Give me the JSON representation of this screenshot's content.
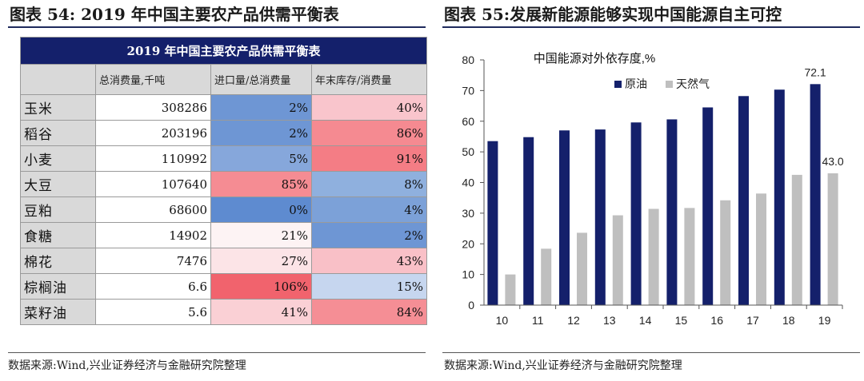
{
  "left": {
    "figure_title": "图表 54:   2019 年中国主要农产品供需平衡表",
    "source": "数据来源:Wind,兴业证券经济与金融研究院整理"
  },
  "right": {
    "figure_title": "图表 55:发展新能源能够实现中国能源自主可控",
    "source": "数据来源:Wind,兴业证券经济与金融研究院整理"
  },
  "chart_data": [
    {
      "type": "table",
      "title": "2019 年中国主要农产品供需平衡表",
      "columns": [
        "",
        "总消费量,千吨",
        "进口量/总消费量",
        "年末库存/消费量"
      ],
      "rows": [
        {
          "name": "玉米",
          "consumption": "308286",
          "import_ratio": "2%",
          "stock_ratio": "40%",
          "import_color": "#6e96d4",
          "stock_color": "#f9c5cc"
        },
        {
          "name": "稻谷",
          "consumption": "203196",
          "import_ratio": "2%",
          "stock_ratio": "86%",
          "import_color": "#6e96d4",
          "stock_color": "#f58a91"
        },
        {
          "name": "小麦",
          "consumption": "110992",
          "import_ratio": "5%",
          "stock_ratio": "91%",
          "import_color": "#86a7db",
          "stock_color": "#f47d85"
        },
        {
          "name": "大豆",
          "consumption": "107640",
          "import_ratio": "85%",
          "stock_ratio": "8%",
          "import_color": "#f58c93",
          "stock_color": "#8fb0de"
        },
        {
          "name": "豆粕",
          "consumption": "68600",
          "import_ratio": "0%",
          "stock_ratio": "4%",
          "import_color": "#5e8bd0",
          "stock_color": "#7ca1d8"
        },
        {
          "name": "食糖",
          "consumption": "14902",
          "import_ratio": "21%",
          "stock_ratio": "2%",
          "import_color": "#fdf3f4",
          "stock_color": "#6e96d4"
        },
        {
          "name": "棉花",
          "consumption": "7476",
          "import_ratio": "27%",
          "stock_ratio": "43%",
          "import_color": "#fce4e7",
          "stock_color": "#f9c0c7"
        },
        {
          "name": "棕榈油",
          "consumption": "6.6",
          "import_ratio": "106%",
          "stock_ratio": "15%",
          "import_color": "#f1636d",
          "stock_color": "#c6d6ef"
        },
        {
          "name": "菜籽油",
          "consumption": "5.6",
          "import_ratio": "41%",
          "stock_ratio": "84%",
          "import_color": "#fad0d5",
          "stock_color": "#f58e95"
        }
      ]
    },
    {
      "type": "bar",
      "title": "中国能源对外依存度,%",
      "categories": [
        "10",
        "11",
        "12",
        "13",
        "14",
        "15",
        "16",
        "17",
        "18",
        "19"
      ],
      "series": [
        {
          "name": "原油",
          "color": "#14206b",
          "values": [
            53.5,
            54.8,
            57.0,
            57.3,
            59.6,
            60.6,
            64.5,
            68.2,
            70.3,
            72.1
          ]
        },
        {
          "name": "天然气",
          "color": "#bfbfbf",
          "values": [
            10.0,
            18.4,
            23.6,
            29.3,
            31.4,
            31.7,
            34.2,
            36.4,
            42.5,
            43.0
          ]
        }
      ],
      "data_labels": [
        "72.1",
        "43.0"
      ],
      "yticks": [
        "0",
        "10",
        "20",
        "30",
        "40",
        "50",
        "60",
        "70",
        "80"
      ],
      "ylim": [
        0,
        80
      ],
      "legend": "top-center",
      "grid": false
    }
  ]
}
